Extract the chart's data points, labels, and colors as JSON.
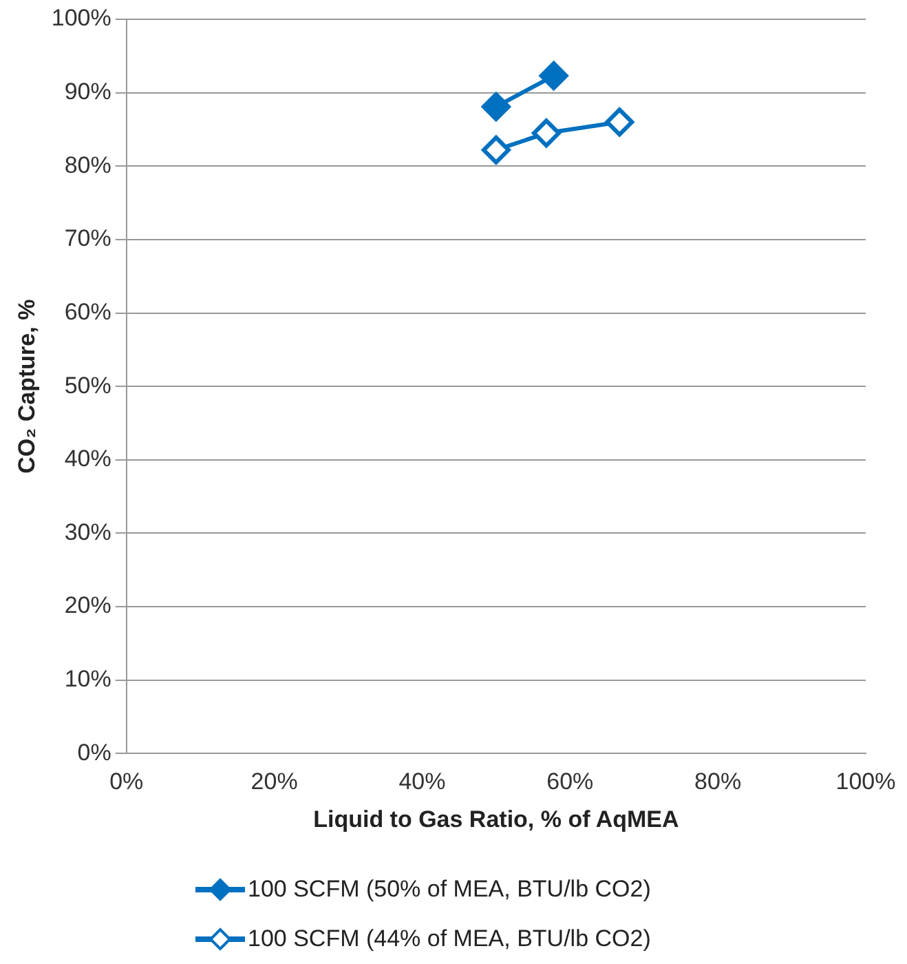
{
  "chart_data": {
    "type": "line",
    "xlabel": "Liquid to Gas Ratio, % of AqMEA",
    "ylabel": "CO₂ Capture, %",
    "series": [
      {
        "name": "100 SCFM (50% of MEA, BTU/lb CO2)",
        "color": "#0070c0",
        "marker": "diamond",
        "x": [
          50,
          57.8
        ],
        "values": [
          88.1,
          92.3
        ]
      },
      {
        "name": "100 SCFM (44% of MEA, BTU/lb CO2)",
        "color": "#0070c0",
        "marker": "diamond",
        "x": [
          50,
          56.8,
          66.7
        ],
        "values": [
          82.2,
          84.5,
          86
        ]
      }
    ],
    "xlim": [
      0,
      100
    ],
    "xticks": [
      {
        "value": 0,
        "label": "0%"
      },
      {
        "value": 20,
        "label": "20%"
      },
      {
        "value": 40,
        "label": "40%"
      },
      {
        "value": 60,
        "label": "60%"
      },
      {
        "value": 80,
        "label": "80%"
      },
      {
        "value": 100,
        "label": "100%"
      }
    ],
    "ylim": [
      0,
      100
    ],
    "yticks": [
      {
        "value": 0,
        "label": "0%"
      },
      {
        "value": 10,
        "label": "10%"
      },
      {
        "value": 20,
        "label": "20%"
      },
      {
        "value": 30,
        "label": "30%"
      },
      {
        "value": 40,
        "label": "40%"
      },
      {
        "value": 50,
        "label": "50%"
      },
      {
        "value": 60,
        "label": "60%"
      },
      {
        "value": 70,
        "label": "70%"
      },
      {
        "value": 80,
        "label": "80%"
      },
      {
        "value": 90,
        "label": "90%"
      },
      {
        "value": 100,
        "label": "100%"
      }
    ],
    "grid": "y",
    "legend": "bottom"
  }
}
